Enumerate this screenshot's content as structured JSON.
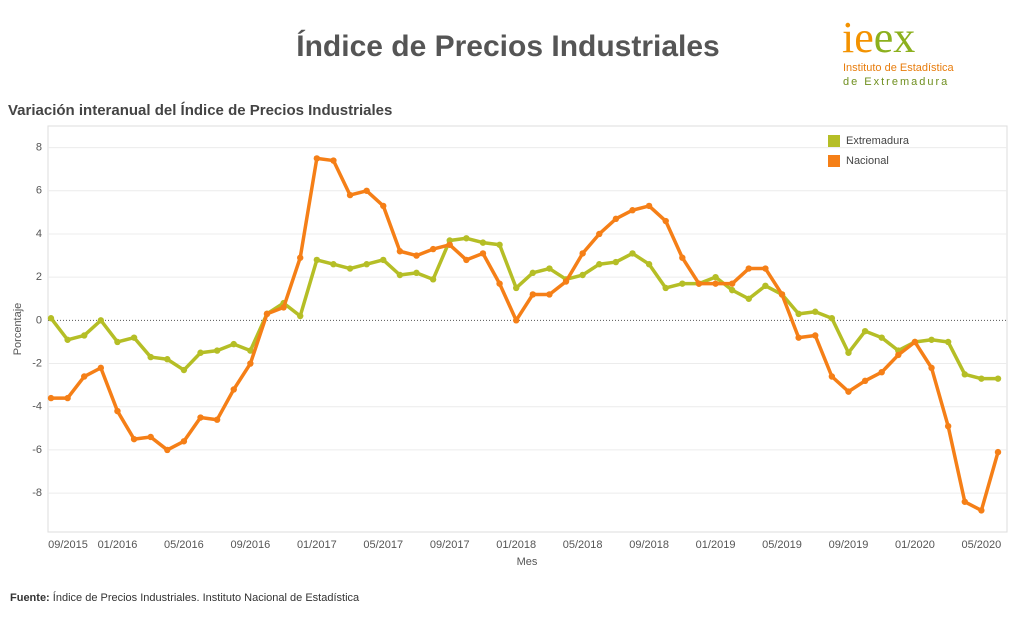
{
  "title": "Índice de Precios Industriales",
  "logo": {
    "text": "ieex",
    "line1": "Instituto de Estadística",
    "line2": "de Extremadura"
  },
  "source": {
    "label": "Fuente:",
    "text": "Índice de Precios Industriales. Instituto Nacional de Estadística"
  },
  "chart_data": {
    "type": "line",
    "title": "Variación interanual del Índice de Precios Industriales",
    "x_label": "Mes",
    "y_label": "Porcentaje",
    "categories": [
      "09/2015",
      null,
      null,
      null,
      "01/2016",
      null,
      null,
      null,
      "05/2016",
      null,
      null,
      null,
      "09/2016",
      null,
      null,
      null,
      "01/2017",
      null,
      null,
      null,
      "05/2017",
      null,
      null,
      null,
      "09/2017",
      null,
      null,
      null,
      "01/2018",
      null,
      null,
      null,
      "05/2018",
      null,
      null,
      null,
      "09/2018",
      null,
      null,
      null,
      "01/2019",
      null,
      null,
      null,
      "05/2019",
      null,
      null,
      null,
      "09/2019",
      null,
      null,
      null,
      "01/2020",
      null,
      null,
      null,
      "05/2020",
      null
    ],
    "series": [
      {
        "name": "Extremadura",
        "color": "#b5be26",
        "values": [
          0.1,
          -0.9,
          -0.7,
          0.0,
          -1.0,
          -0.8,
          -1.7,
          -1.8,
          -2.3,
          -1.5,
          -1.4,
          -1.1,
          -1.4,
          0.3,
          0.8,
          0.2,
          2.8,
          2.6,
          2.4,
          2.6,
          2.8,
          2.1,
          2.2,
          1.9,
          3.7,
          3.8,
          3.6,
          3.5,
          1.5,
          2.2,
          2.4,
          1.9,
          2.1,
          2.6,
          2.7,
          3.1,
          2.6,
          1.5,
          1.7,
          1.7,
          2.0,
          1.4,
          1.0,
          1.6,
          1.2,
          0.3,
          0.4,
          0.1,
          -1.5,
          -0.5,
          -0.8,
          -1.4,
          -1.0,
          -0.9,
          -1.0,
          -2.5,
          -2.7,
          -2.7
        ]
      },
      {
        "name": "Nacional",
        "color": "#f57f17",
        "values": [
          -3.6,
          -3.6,
          -2.6,
          -2.2,
          -4.2,
          -5.5,
          -5.4,
          -6.0,
          -5.6,
          -4.5,
          -4.6,
          -3.2,
          -2.0,
          0.3,
          0.6,
          2.9,
          7.5,
          7.4,
          5.8,
          6.0,
          5.3,
          3.2,
          3.0,
          3.3,
          3.5,
          2.8,
          3.1,
          1.7,
          0.0,
          1.2,
          1.2,
          1.8,
          3.1,
          4.0,
          4.7,
          5.1,
          5.3,
          4.6,
          2.9,
          1.7,
          1.7,
          1.7,
          2.4,
          2.4,
          1.2,
          -0.8,
          -0.7,
          -2.6,
          -3.3,
          -2.8,
          -2.4,
          -1.6,
          -1.0,
          -2.2,
          -4.9,
          -8.4,
          -8.8,
          -6.1
        ]
      }
    ],
    "ylim": [
      -9.8,
      9.0
    ],
    "yticks": [
      -8,
      -6,
      -4,
      -2,
      0,
      2,
      4,
      6,
      8
    ],
    "grid": true,
    "legend": "top-right"
  }
}
